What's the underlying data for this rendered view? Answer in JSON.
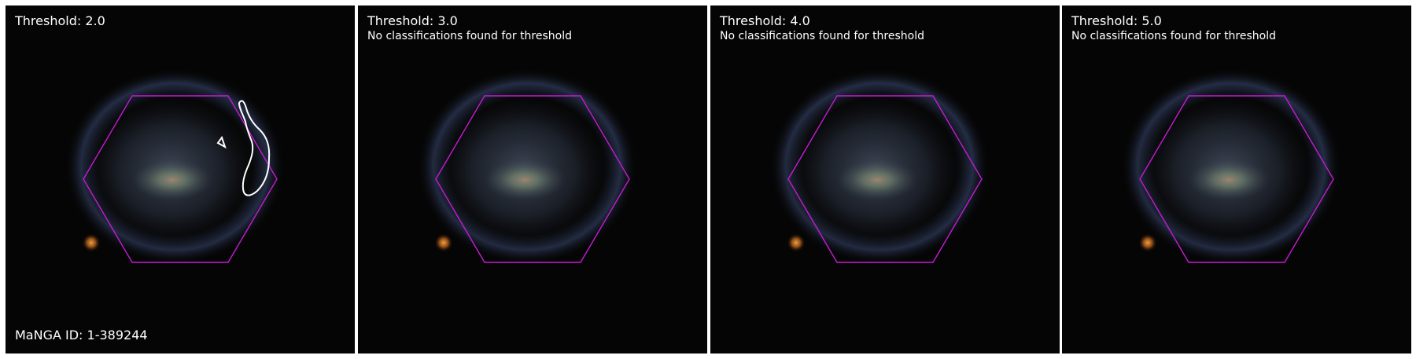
{
  "manga_id": "MaNGA ID: 1-389244",
  "colors": {
    "hexagon": "#c61ad3",
    "contour": "#ffffff",
    "background": "#050505"
  },
  "panels": [
    {
      "threshold_label": "Threshold: 2.0",
      "message": ""
    },
    {
      "threshold_label": "Threshold: 3.0",
      "message": "No classifications found for threshold"
    },
    {
      "threshold_label": "Threshold: 4.0",
      "message": "No classifications found for threshold"
    },
    {
      "threshold_label": "Threshold: 5.0",
      "message": "No classifications found for threshold"
    }
  ]
}
